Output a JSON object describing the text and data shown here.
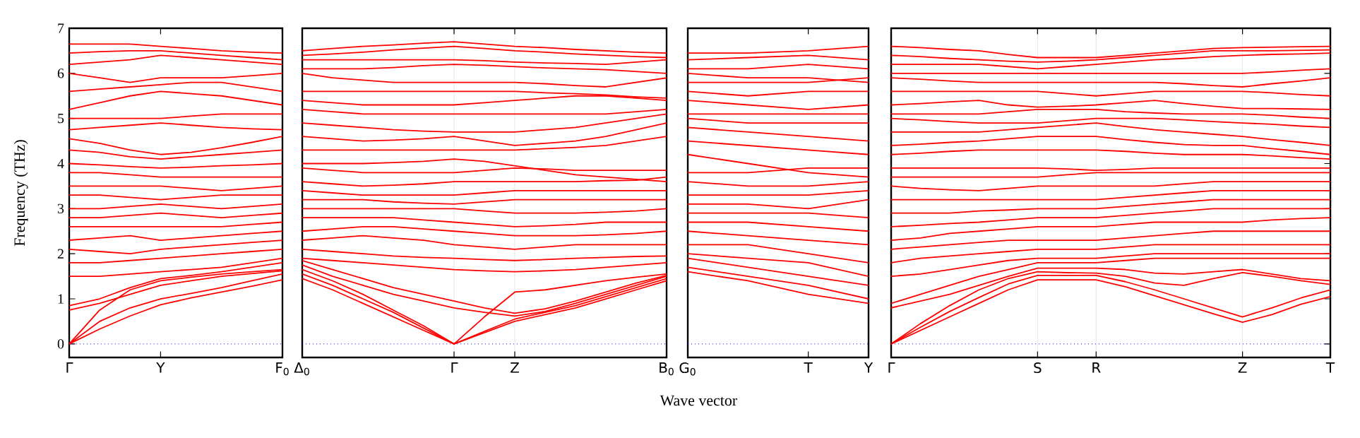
{
  "chart_data": [
    {
      "type": "line",
      "ylabel": "Frequency (THz)",
      "ylim": [
        -0.3,
        7
      ],
      "yticks": [
        0,
        1,
        2,
        3,
        4,
        5,
        6,
        7
      ],
      "marker": "none",
      "line_style": "solid",
      "ref_lines": [
        {
          "axis": "y",
          "value": 0,
          "color": "#0000ff",
          "line_style": "dotted"
        }
      ],
      "categories": [
        "Γ",
        null,
        null,
        "Y",
        null,
        null,
        null,
        "F$_{0}$"
      ],
      "series": [
        {
          "color": "#ff0000",
          "values": [
            0,
            0.33,
            0.62,
            0.87,
            1.02,
            1.15,
            1.28,
            1.42
          ]
        },
        {
          "color": "#ff0000",
          "values": [
            0,
            0.5,
            0.8,
            1.0,
            1.12,
            1.25,
            1.4,
            1.55
          ]
        },
        {
          "color": "#ff0000",
          "values": [
            0.75,
            0.9,
            1.1,
            1.3,
            1.4,
            1.5,
            1.56,
            1.62
          ]
        },
        {
          "color": "#ff0000",
          "values": [
            0,
            0.75,
            1.2,
            1.4,
            1.48,
            1.55,
            1.6,
            1.65
          ]
        },
        {
          "color": "#ff0000",
          "values": [
            0.85,
            1.0,
            1.25,
            1.45,
            1.52,
            1.6,
            1.7,
            1.8
          ]
        },
        {
          "color": "#ff0000",
          "values": [
            1.5,
            1.5,
            1.55,
            1.6,
            1.65,
            1.7,
            1.8,
            1.9
          ]
        },
        {
          "color": "#ff0000",
          "values": [
            1.8,
            1.8,
            1.85,
            1.9,
            1.95,
            2.0,
            2.05,
            2.1
          ]
        },
        {
          "color": "#ff0000",
          "values": [
            2.1,
            2.05,
            2.0,
            2.1,
            2.15,
            2.2,
            2.25,
            2.3
          ]
        },
        {
          "color": "#ff0000",
          "values": [
            2.3,
            2.35,
            2.4,
            2.3,
            2.35,
            2.4,
            2.45,
            2.5
          ]
        },
        {
          "color": "#ff0000",
          "values": [
            2.6,
            2.6,
            2.6,
            2.6,
            2.6,
            2.6,
            2.65,
            2.7
          ]
        },
        {
          "color": "#ff0000",
          "values": [
            2.8,
            2.8,
            2.85,
            2.9,
            2.85,
            2.8,
            2.85,
            2.9
          ]
        },
        {
          "color": "#ff0000",
          "values": [
            3.0,
            3.0,
            3.05,
            3.1,
            3.05,
            3.0,
            3.05,
            3.1
          ]
        },
        {
          "color": "#ff0000",
          "values": [
            3.3,
            3.3,
            3.25,
            3.2,
            3.25,
            3.3,
            3.3,
            3.3
          ]
        },
        {
          "color": "#ff0000",
          "values": [
            3.5,
            3.5,
            3.5,
            3.5,
            3.45,
            3.4,
            3.45,
            3.5
          ]
        },
        {
          "color": "#ff0000",
          "values": [
            3.8,
            3.8,
            3.75,
            3.7,
            3.7,
            3.7,
            3.7,
            3.7
          ]
        },
        {
          "color": "#ff0000",
          "values": [
            4.0,
            3.97,
            3.93,
            3.9,
            3.92,
            3.95,
            3.97,
            4.0
          ]
        },
        {
          "color": "#ff0000",
          "values": [
            4.3,
            4.25,
            4.15,
            4.1,
            4.15,
            4.2,
            4.25,
            4.3
          ]
        },
        {
          "color": "#ff0000",
          "values": [
            4.55,
            4.45,
            4.3,
            4.2,
            4.25,
            4.35,
            4.47,
            4.6
          ]
        },
        {
          "color": "#ff0000",
          "values": [
            4.75,
            4.8,
            4.85,
            4.9,
            4.85,
            4.8,
            4.77,
            4.75
          ]
        },
        {
          "color": "#ff0000",
          "values": [
            5.0,
            5.0,
            5.0,
            5.0,
            5.05,
            5.1,
            5.1,
            5.1
          ]
        },
        {
          "color": "#ff0000",
          "values": [
            5.2,
            5.35,
            5.5,
            5.6,
            5.55,
            5.5,
            5.4,
            5.3
          ]
        },
        {
          "color": "#ff0000",
          "values": [
            5.6,
            5.65,
            5.7,
            5.75,
            5.8,
            5.8,
            5.7,
            5.6
          ]
        },
        {
          "color": "#ff0000",
          "values": [
            6.0,
            5.9,
            5.8,
            5.9,
            5.9,
            5.9,
            5.95,
            6.0
          ]
        },
        {
          "color": "#ff0000",
          "values": [
            6.2,
            6.25,
            6.3,
            6.4,
            6.35,
            6.3,
            6.25,
            6.2
          ]
        },
        {
          "color": "#ff0000",
          "values": [
            6.45,
            6.48,
            6.5,
            6.5,
            6.45,
            6.4,
            6.35,
            6.3
          ]
        },
        {
          "color": "#ff0000",
          "values": [
            6.65,
            6.65,
            6.65,
            6.6,
            6.55,
            6.5,
            6.47,
            6.45
          ]
        }
      ]
    },
    {
      "type": "line",
      "tick_labels": "x",
      "ylim": [
        -0.3,
        7
      ],
      "yticks": [
        0,
        1,
        2,
        3,
        4,
        5,
        6,
        7
      ],
      "grid": "x",
      "marker": "none",
      "line_style": "solid",
      "ref_lines": [
        {
          "axis": "y",
          "value": 0,
          "color": "#0000ff",
          "line_style": "dotted"
        }
      ],
      "categories": [
        "Δ$_{0}$",
        null,
        null,
        null,
        null,
        "Γ",
        null,
        "Z",
        null,
        null,
        null,
        null,
        "B$_{0}$"
      ],
      "series": [
        {
          "color": "#ff0000",
          "values": [
            1.45,
            1.2,
            0.9,
            0.6,
            0.3,
            0,
            0.25,
            0.5,
            0.65,
            0.8,
            1.0,
            1.2,
            1.4
          ]
        },
        {
          "color": "#ff0000",
          "values": [
            1.55,
            1.3,
            1.0,
            0.7,
            0.35,
            0,
            0.28,
            0.55,
            0.7,
            0.85,
            1.05,
            1.25,
            1.45
          ]
        },
        {
          "color": "#ff0000",
          "values": [
            1.65,
            1.4,
            1.1,
            0.75,
            0.4,
            0,
            0.6,
            1.15,
            1.2,
            1.3,
            1.4,
            1.48,
            1.55
          ]
        },
        {
          "color": "#ff0000",
          "values": [
            1.75,
            1.5,
            1.3,
            1.1,
            0.95,
            0.8,
            0.7,
            0.62,
            0.72,
            0.9,
            1.1,
            1.3,
            1.5
          ]
        },
        {
          "color": "#ff0000",
          "values": [
            1.85,
            1.65,
            1.45,
            1.25,
            1.1,
            0.95,
            0.8,
            0.68,
            0.78,
            0.95,
            1.15,
            1.35,
            1.52
          ]
        },
        {
          "color": "#ff0000",
          "values": [
            1.9,
            1.85,
            1.8,
            1.75,
            1.7,
            1.65,
            1.62,
            1.6,
            1.62,
            1.65,
            1.7,
            1.75,
            1.8
          ]
        },
        {
          "color": "#ff0000",
          "values": [
            2.1,
            2.05,
            2.0,
            1.95,
            1.92,
            1.9,
            1.87,
            1.85,
            1.87,
            1.9,
            1.92,
            1.94,
            1.95
          ]
        },
        {
          "color": "#ff0000",
          "values": [
            2.3,
            2.35,
            2.4,
            2.35,
            2.3,
            2.2,
            2.15,
            2.1,
            2.15,
            2.2,
            2.2,
            2.2,
            2.2
          ]
        },
        {
          "color": "#ff0000",
          "values": [
            2.5,
            2.55,
            2.6,
            2.6,
            2.55,
            2.5,
            2.45,
            2.4,
            2.4,
            2.4,
            2.42,
            2.45,
            2.5
          ]
        },
        {
          "color": "#ff0000",
          "values": [
            2.8,
            2.8,
            2.8,
            2.8,
            2.75,
            2.7,
            2.65,
            2.6,
            2.62,
            2.65,
            2.7,
            2.7,
            2.7
          ]
        },
        {
          "color": "#ff0000",
          "values": [
            3.0,
            3.0,
            3.0,
            3.0,
            3.0,
            3.0,
            2.95,
            2.9,
            2.9,
            2.9,
            2.92,
            2.95,
            3.0
          ]
        },
        {
          "color": "#ff0000",
          "values": [
            3.2,
            3.2,
            3.2,
            3.15,
            3.12,
            3.1,
            3.15,
            3.2,
            3.2,
            3.2,
            3.2,
            3.2,
            3.2
          ]
        },
        {
          "color": "#ff0000",
          "values": [
            3.4,
            3.35,
            3.3,
            3.3,
            3.3,
            3.3,
            3.35,
            3.4,
            3.4,
            3.4,
            3.4,
            3.4,
            3.4
          ]
        },
        {
          "color": "#ff0000",
          "values": [
            3.6,
            3.55,
            3.5,
            3.52,
            3.55,
            3.6,
            3.6,
            3.6,
            3.6,
            3.6,
            3.62,
            3.63,
            3.7
          ]
        },
        {
          "color": "#ff0000",
          "values": [
            3.9,
            3.85,
            3.8,
            3.8,
            3.8,
            3.8,
            3.85,
            3.9,
            3.88,
            3.85,
            3.85,
            3.85,
            3.85
          ]
        },
        {
          "color": "#ff0000",
          "values": [
            4.0,
            4.0,
            4.0,
            4.02,
            4.05,
            4.1,
            4.05,
            3.95,
            3.85,
            3.75,
            3.7,
            3.65,
            3.6
          ]
        },
        {
          "color": "#ff0000",
          "values": [
            4.3,
            4.3,
            4.3,
            4.3,
            4.3,
            4.3,
            4.3,
            4.3,
            4.33,
            4.36,
            4.4,
            4.5,
            4.6
          ]
        },
        {
          "color": "#ff0000",
          "values": [
            4.6,
            4.55,
            4.5,
            4.52,
            4.55,
            4.6,
            4.5,
            4.4,
            4.45,
            4.5,
            4.6,
            4.75,
            4.9
          ]
        },
        {
          "color": "#ff0000",
          "values": [
            4.9,
            4.85,
            4.8,
            4.75,
            4.72,
            4.7,
            4.7,
            4.7,
            4.75,
            4.8,
            4.9,
            5.0,
            5.1
          ]
        },
        {
          "color": "#ff0000",
          "values": [
            5.2,
            5.15,
            5.1,
            5.1,
            5.1,
            5.1,
            5.1,
            5.1,
            5.1,
            5.1,
            5.1,
            5.15,
            5.2
          ]
        },
        {
          "color": "#ff0000",
          "values": [
            5.4,
            5.35,
            5.3,
            5.3,
            5.3,
            5.3,
            5.35,
            5.4,
            5.45,
            5.5,
            5.5,
            5.45,
            5.4
          ]
        },
        {
          "color": "#ff0000",
          "values": [
            5.6,
            5.6,
            5.6,
            5.6,
            5.6,
            5.6,
            5.6,
            5.6,
            5.57,
            5.55,
            5.52,
            5.48,
            5.45
          ]
        },
        {
          "color": "#ff0000",
          "values": [
            6.0,
            5.9,
            5.85,
            5.8,
            5.8,
            5.8,
            5.8,
            5.8,
            5.77,
            5.73,
            5.7,
            5.8,
            5.9
          ]
        },
        {
          "color": "#ff0000",
          "values": [
            6.1,
            6.1,
            6.1,
            6.13,
            6.17,
            6.2,
            6.18,
            6.15,
            6.12,
            6.1,
            6.08,
            6.04,
            6.0
          ]
        },
        {
          "color": "#ff0000",
          "values": [
            6.3,
            6.3,
            6.3,
            6.3,
            6.3,
            6.3,
            6.28,
            6.25,
            6.23,
            6.22,
            6.2,
            6.25,
            6.3
          ]
        },
        {
          "color": "#ff0000",
          "values": [
            6.4,
            6.43,
            6.47,
            6.52,
            6.56,
            6.6,
            6.55,
            6.5,
            6.47,
            6.43,
            6.4,
            6.37,
            6.35
          ]
        },
        {
          "color": "#ff0000",
          "values": [
            6.5,
            6.55,
            6.6,
            6.63,
            6.67,
            6.7,
            6.65,
            6.6,
            6.57,
            6.53,
            6.5,
            6.47,
            6.45
          ]
        }
      ]
    },
    {
      "type": "line",
      "tick_labels": "x",
      "xlabel": "Wave vector",
      "ylim": [
        -0.3,
        7
      ],
      "yticks": [
        0,
        1,
        2,
        3,
        4,
        5,
        6,
        7
      ],
      "marker": "none",
      "line_style": "solid",
      "ref_lines": [
        {
          "axis": "y",
          "value": 0,
          "color": "#0000ff",
          "line_style": "dotted"
        }
      ],
      "categories": [
        "G$_{0}$",
        null,
        "T",
        "Y"
      ],
      "series": [
        {
          "color": "#ff0000",
          "values": [
            1.6,
            1.4,
            1.1,
            0.9
          ]
        },
        {
          "color": "#ff0000",
          "values": [
            1.7,
            1.5,
            1.3,
            1.0
          ]
        },
        {
          "color": "#ff0000",
          "values": [
            1.9,
            1.7,
            1.5,
            1.3
          ]
        },
        {
          "color": "#ff0000",
          "values": [
            2.0,
            1.9,
            1.8,
            1.5
          ]
        },
        {
          "color": "#ff0000",
          "values": [
            2.2,
            2.2,
            2.0,
            1.8
          ]
        },
        {
          "color": "#ff0000",
          "values": [
            2.5,
            2.4,
            2.3,
            2.2
          ]
        },
        {
          "color": "#ff0000",
          "values": [
            2.7,
            2.7,
            2.6,
            2.5
          ]
        },
        {
          "color": "#ff0000",
          "values": [
            2.9,
            2.9,
            2.9,
            2.8
          ]
        },
        {
          "color": "#ff0000",
          "values": [
            3.1,
            3.1,
            3.0,
            3.2
          ]
        },
        {
          "color": "#ff0000",
          "values": [
            3.3,
            3.3,
            3.3,
            3.4
          ]
        },
        {
          "color": "#ff0000",
          "values": [
            3.6,
            3.5,
            3.5,
            3.6
          ]
        },
        {
          "color": "#ff0000",
          "values": [
            3.8,
            3.8,
            3.9,
            3.9
          ]
        },
        {
          "color": "#ff0000",
          "values": [
            4.2,
            4.0,
            3.8,
            3.7
          ]
        },
        {
          "color": "#ff0000",
          "values": [
            4.5,
            4.4,
            4.3,
            4.2
          ]
        },
        {
          "color": "#ff0000",
          "values": [
            4.8,
            4.7,
            4.6,
            4.5
          ]
        },
        {
          "color": "#ff0000",
          "values": [
            5.0,
            4.9,
            4.9,
            4.9
          ]
        },
        {
          "color": "#ff0000",
          "values": [
            5.1,
            5.1,
            5.1,
            5.1
          ]
        },
        {
          "color": "#ff0000",
          "values": [
            5.4,
            5.3,
            5.2,
            5.3
          ]
        },
        {
          "color": "#ff0000",
          "values": [
            5.6,
            5.5,
            5.6,
            5.6
          ]
        },
        {
          "color": "#ff0000",
          "values": [
            5.8,
            5.8,
            5.8,
            5.9
          ]
        },
        {
          "color": "#ff0000",
          "values": [
            6.0,
            5.9,
            5.9,
            5.8
          ]
        },
        {
          "color": "#ff0000",
          "values": [
            6.1,
            6.1,
            6.2,
            6.1
          ]
        },
        {
          "color": "#ff0000",
          "values": [
            6.3,
            6.35,
            6.4,
            6.3
          ]
        },
        {
          "color": "#ff0000",
          "values": [
            6.45,
            6.45,
            6.5,
            6.6
          ]
        }
      ]
    },
    {
      "type": "line",
      "tick_labels": "x",
      "ylim": [
        -0.3,
        7
      ],
      "yticks": [
        0,
        1,
        2,
        3,
        4,
        5,
        6,
        7
      ],
      "grid": "x",
      "marker": "none",
      "line_style": "solid",
      "ref_lines": [
        {
          "axis": "y",
          "value": 0,
          "color": "#0000ff",
          "line_style": "dotted"
        }
      ],
      "categories": [
        "Γ",
        null,
        null,
        null,
        null,
        "S",
        null,
        "R",
        null,
        null,
        null,
        null,
        "Z",
        null,
        null,
        "T"
      ],
      "series": [
        {
          "color": "#ff0000",
          "values": [
            0,
            0.3,
            0.6,
            0.9,
            1.2,
            1.42,
            1.42,
            1.42,
            1.27,
            1.07,
            0.87,
            0.67,
            0.48,
            0.65,
            0.88,
            1.05
          ]
        },
        {
          "color": "#ff0000",
          "values": [
            0,
            0.37,
            0.72,
            1.03,
            1.33,
            1.52,
            1.52,
            1.52,
            1.38,
            1.2,
            1.0,
            0.8,
            0.6,
            0.8,
            1.02,
            1.2
          ]
        },
        {
          "color": "#ff0000",
          "values": [
            0,
            0.45,
            0.85,
            1.2,
            1.45,
            1.6,
            1.58,
            1.57,
            1.5,
            1.35,
            1.3,
            1.45,
            1.58,
            1.5,
            1.4,
            1.32
          ]
        },
        {
          "color": "#ff0000",
          "values": [
            0.8,
            0.95,
            1.1,
            1.3,
            1.5,
            1.68,
            1.68,
            1.68,
            1.65,
            1.57,
            1.55,
            1.6,
            1.65,
            1.55,
            1.45,
            1.4
          ]
        },
        {
          "color": "#ff0000",
          "values": [
            0.9,
            1.1,
            1.3,
            1.5,
            1.65,
            1.8,
            1.8,
            1.8,
            1.85,
            1.9,
            1.9,
            1.9,
            1.9,
            1.9,
            1.9,
            1.9
          ]
        },
        {
          "color": "#ff0000",
          "values": [
            1.5,
            1.55,
            1.65,
            1.75,
            1.85,
            1.9,
            1.9,
            1.9,
            1.95,
            2.0,
            2.0,
            2.0,
            2.0,
            2.0,
            2.0,
            2.0
          ]
        },
        {
          "color": "#ff0000",
          "values": [
            1.8,
            1.9,
            1.95,
            2.0,
            2.05,
            2.1,
            2.1,
            2.1,
            2.15,
            2.2,
            2.2,
            2.2,
            2.2,
            2.2,
            2.2,
            2.2
          ]
        },
        {
          "color": "#ff0000",
          "values": [
            2.1,
            2.15,
            2.2,
            2.25,
            2.3,
            2.3,
            2.3,
            2.3,
            2.35,
            2.4,
            2.45,
            2.5,
            2.5,
            2.5,
            2.5,
            2.5
          ]
        },
        {
          "color": "#ff0000",
          "values": [
            2.3,
            2.35,
            2.45,
            2.5,
            2.55,
            2.6,
            2.6,
            2.6,
            2.65,
            2.7,
            2.7,
            2.7,
            2.7,
            2.75,
            2.78,
            2.8
          ]
        },
        {
          "color": "#ff0000",
          "values": [
            2.6,
            2.63,
            2.67,
            2.7,
            2.75,
            2.8,
            2.8,
            2.8,
            2.85,
            2.9,
            2.95,
            3.0,
            3.0,
            3.0,
            3.0,
            3.0
          ]
        },
        {
          "color": "#ff0000",
          "values": [
            2.9,
            2.9,
            2.9,
            2.95,
            2.97,
            3.0,
            3.0,
            3.0,
            3.05,
            3.1,
            3.15,
            3.2,
            3.2,
            3.2,
            3.2,
            3.2
          ]
        },
        {
          "color": "#ff0000",
          "values": [
            3.2,
            3.2,
            3.2,
            3.2,
            3.2,
            3.2,
            3.2,
            3.2,
            3.25,
            3.3,
            3.35,
            3.4,
            3.4,
            3.4,
            3.4,
            3.4
          ]
        },
        {
          "color": "#ff0000",
          "values": [
            3.5,
            3.45,
            3.42,
            3.4,
            3.45,
            3.5,
            3.5,
            3.5,
            3.5,
            3.5,
            3.55,
            3.6,
            3.6,
            3.6,
            3.6,
            3.6
          ]
        },
        {
          "color": "#ff0000",
          "values": [
            3.7,
            3.7,
            3.7,
            3.7,
            3.7,
            3.7,
            3.75,
            3.8,
            3.8,
            3.8,
            3.8,
            3.8,
            3.8,
            3.8,
            3.8,
            3.8
          ]
        },
        {
          "color": "#ff0000",
          "values": [
            3.9,
            3.9,
            3.9,
            3.9,
            3.9,
            3.9,
            3.88,
            3.85,
            3.87,
            3.9,
            3.9,
            3.9,
            3.9,
            3.9,
            3.9,
            3.9
          ]
        },
        {
          "color": "#ff0000",
          "values": [
            4.2,
            4.23,
            4.27,
            4.3,
            4.3,
            4.3,
            4.3,
            4.3,
            4.27,
            4.23,
            4.2,
            4.2,
            4.2,
            4.17,
            4.13,
            4.1
          ]
        },
        {
          "color": "#ff0000",
          "values": [
            4.4,
            4.43,
            4.47,
            4.5,
            4.55,
            4.6,
            4.6,
            4.6,
            4.53,
            4.47,
            4.42,
            4.4,
            4.4,
            4.33,
            4.27,
            4.2
          ]
        },
        {
          "color": "#ff0000",
          "values": [
            4.7,
            4.7,
            4.7,
            4.7,
            4.75,
            4.8,
            4.85,
            4.9,
            4.82,
            4.75,
            4.7,
            4.65,
            4.6,
            4.53,
            4.47,
            4.4
          ]
        },
        {
          "color": "#ff0000",
          "values": [
            5.0,
            4.97,
            4.93,
            4.9,
            4.9,
            4.9,
            4.95,
            5.0,
            5.0,
            5.0,
            4.97,
            4.93,
            4.9,
            4.87,
            4.83,
            4.8
          ]
        },
        {
          "color": "#ff0000",
          "values": [
            5.1,
            5.1,
            5.1,
            5.1,
            5.15,
            5.2,
            5.2,
            5.2,
            5.15,
            5.12,
            5.1,
            5.1,
            5.1,
            5.07,
            5.03,
            5.0
          ]
        },
        {
          "color": "#ff0000",
          "values": [
            5.3,
            5.33,
            5.37,
            5.4,
            5.3,
            5.25,
            5.27,
            5.3,
            5.35,
            5.4,
            5.33,
            5.27,
            5.22,
            5.22,
            5.21,
            5.2
          ]
        },
        {
          "color": "#ff0000",
          "values": [
            5.6,
            5.6,
            5.6,
            5.6,
            5.6,
            5.6,
            5.55,
            5.5,
            5.55,
            5.6,
            5.6,
            5.6,
            5.6,
            5.57,
            5.53,
            5.5
          ]
        },
        {
          "color": "#ff0000",
          "values": [
            5.9,
            5.87,
            5.83,
            5.8,
            5.8,
            5.8,
            5.8,
            5.8,
            5.8,
            5.8,
            5.77,
            5.73,
            5.7,
            5.77,
            5.83,
            5.9
          ]
        },
        {
          "color": "#ff0000",
          "values": [
            6.0,
            6.0,
            6.0,
            6.0,
            6.0,
            6.0,
            6.0,
            6.0,
            6.0,
            6.0,
            6.0,
            6.0,
            6.0,
            6.03,
            6.07,
            6.1
          ]
        },
        {
          "color": "#ff0000",
          "values": [
            6.2,
            6.2,
            6.2,
            6.2,
            6.15,
            6.1,
            6.15,
            6.2,
            6.25,
            6.3,
            6.33,
            6.37,
            6.4,
            6.42,
            6.43,
            6.45
          ]
        },
        {
          "color": "#ff0000",
          "values": [
            6.4,
            6.37,
            6.33,
            6.3,
            6.27,
            6.25,
            6.27,
            6.3,
            6.35,
            6.4,
            6.45,
            6.5,
            6.5,
            6.5,
            6.51,
            6.52
          ]
        },
        {
          "color": "#ff0000",
          "values": [
            6.6,
            6.57,
            6.53,
            6.5,
            6.42,
            6.35,
            6.35,
            6.35,
            6.4,
            6.45,
            6.5,
            6.55,
            6.57,
            6.58,
            6.59,
            6.6
          ]
        }
      ]
    }
  ]
}
